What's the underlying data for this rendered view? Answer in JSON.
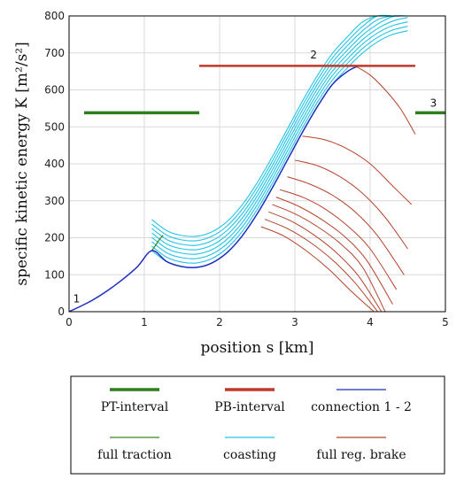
{
  "chart_data": {
    "type": "line",
    "xlabel": "position s [km]",
    "ylabel": "specific kinetic energy K [m²/s²]",
    "xlim": [
      0,
      5
    ],
    "ylim": [
      0,
      800
    ],
    "xticks": [
      "0",
      "1",
      "2",
      "3",
      "4",
      "5"
    ],
    "yticks": [
      "0",
      "100",
      "200",
      "300",
      "400",
      "500",
      "600",
      "700",
      "800"
    ],
    "grid": true,
    "point_labels": [
      {
        "text": "1",
        "x": 0.1,
        "y": 25
      },
      {
        "text": "2",
        "x": 3.25,
        "y": 685
      },
      {
        "text": "3",
        "x": 4.84,
        "y": 555
      }
    ],
    "pt_intervals": [
      {
        "x": [
          0.2,
          1.73
        ],
        "y": 538
      },
      {
        "x": [
          4.6,
          5.0
        ],
        "y": 538
      }
    ],
    "pb_intervals": [
      {
        "x": [
          1.73,
          4.6
        ],
        "y": 665
      }
    ],
    "connection": {
      "x": [
        0,
        0.3,
        0.6,
        0.9,
        1.1,
        1.3,
        1.5,
        1.7,
        1.9,
        2.1,
        2.3,
        2.5,
        2.7,
        2.9,
        3.1,
        3.3,
        3.5,
        3.7,
        3.85
      ],
      "y": [
        0,
        30,
        70,
        120,
        165,
        135,
        122,
        120,
        132,
        160,
        205,
        265,
        335,
        410,
        485,
        555,
        615,
        650,
        665
      ]
    },
    "full_traction": {
      "x": [
        1.1,
        1.15,
        1.2,
        1.25
      ],
      "y": [
        165,
        180,
        195,
        207
      ]
    },
    "coasting_offsets": [
      0,
      12,
      24,
      36,
      48,
      60,
      72,
      84
    ],
    "coasting": {
      "x": [
        1.1,
        1.3,
        1.5,
        1.7,
        1.9,
        2.1,
        2.3,
        2.5,
        2.7,
        2.9,
        3.1,
        3.3,
        3.5,
        3.7,
        3.9,
        4.1,
        4.3,
        4.5
      ],
      "y": [
        165,
        135,
        122,
        120,
        132,
        160,
        205,
        265,
        335,
        410,
        485,
        555,
        615,
        660,
        700,
        730,
        750,
        760
      ]
    },
    "brake_curves": [
      {
        "x": [
          3.8,
          4.0,
          4.2,
          4.4,
          4.6
        ],
        "y": [
          665,
          640,
          600,
          550,
          480
        ]
      },
      {
        "x": [
          3.1,
          3.4,
          3.7,
          4.0,
          4.3,
          4.55
        ],
        "y": [
          475,
          465,
          440,
          400,
          340,
          290
        ]
      },
      {
        "x": [
          3.0,
          3.3,
          3.6,
          3.9,
          4.2,
          4.5
        ],
        "y": [
          410,
          395,
          365,
          320,
          255,
          170
        ]
      },
      {
        "x": [
          2.9,
          3.2,
          3.5,
          3.8,
          4.1,
          4.45
        ],
        "y": [
          365,
          345,
          315,
          270,
          205,
          100
        ]
      },
      {
        "x": [
          2.8,
          3.1,
          3.4,
          3.7,
          4.0,
          4.35
        ],
        "y": [
          330,
          310,
          278,
          232,
          170,
          60
        ]
      },
      {
        "x": [
          2.75,
          3.05,
          3.35,
          3.65,
          3.95,
          4.3
        ],
        "y": [
          310,
          285,
          250,
          205,
          140,
          20
        ]
      },
      {
        "x": [
          2.7,
          3.0,
          3.3,
          3.6,
          3.9,
          4.2
        ],
        "y": [
          290,
          265,
          230,
          185,
          120,
          0
        ]
      },
      {
        "x": [
          2.65,
          2.95,
          3.25,
          3.55,
          3.85,
          4.15
        ],
        "y": [
          270,
          245,
          208,
          160,
          95,
          0
        ]
      },
      {
        "x": [
          2.6,
          2.9,
          3.2,
          3.5,
          3.8,
          4.1
        ],
        "y": [
          250,
          225,
          188,
          140,
          78,
          0
        ]
      },
      {
        "x": [
          2.55,
          2.85,
          3.15,
          3.45,
          3.75,
          4.05
        ],
        "y": [
          230,
          205,
          165,
          115,
          55,
          0
        ]
      }
    ],
    "colors": {
      "pt": "#2e7d1f",
      "pb": "#c0392b",
      "connection": "#1f2fbf",
      "traction": "#3a8a2a",
      "coasting": "#22c4e6",
      "brake": "#b5432b",
      "grid": "#d9d9d9"
    },
    "legend": {
      "placement": "bottom",
      "entries": [
        {
          "label": "PT-interval",
          "color": "#2e7d1f",
          "weight": "thick"
        },
        {
          "label": "PB-interval",
          "color": "#c0392b",
          "weight": "thick"
        },
        {
          "label": "connection 1 - 2",
          "color": "#1f2fbf",
          "weight": "thin"
        },
        {
          "label": "full traction",
          "color": "#3a8a2a",
          "weight": "thin"
        },
        {
          "label": "coasting",
          "color": "#22c4e6",
          "weight": "thin"
        },
        {
          "label": "full reg. brake",
          "color": "#b5432b",
          "weight": "thin"
        }
      ]
    }
  }
}
